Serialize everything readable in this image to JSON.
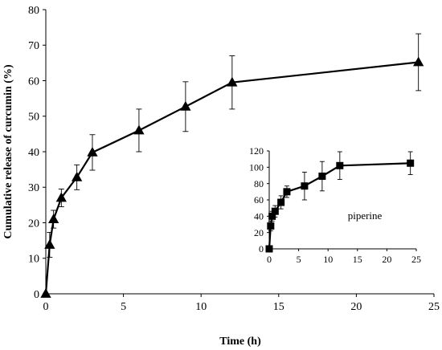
{
  "chart_data": [
    {
      "type": "line",
      "xlabel": "Time (h)",
      "ylabel": "Cumulative release of curcumin (%)",
      "xlim": [
        0,
        25
      ],
      "ylim": [
        0,
        80
      ],
      "xticks": [
        "0",
        "5",
        "10",
        "15",
        "20",
        "25"
      ],
      "yticks": [
        "0",
        "10",
        "20",
        "30",
        "40",
        "50",
        "60",
        "70",
        "80"
      ],
      "marker": "triangle",
      "series": [
        {
          "x": [
            0,
            0.25,
            0.5,
            1,
            2,
            3,
            6,
            9,
            12,
            24
          ],
          "y": [
            0,
            13.8,
            21,
            27,
            32.8,
            39.8,
            46,
            52.7,
            59.5,
            65.2
          ],
          "yerr": [
            0,
            3.5,
            2.5,
            2.5,
            3.5,
            5,
            6,
            7,
            7.5,
            8
          ]
        }
      ]
    },
    {
      "type": "line",
      "xlim": [
        0,
        25
      ],
      "ylim": [
        0,
        120
      ],
      "xticks": [
        "0",
        "5",
        "10",
        "15",
        "20",
        "25"
      ],
      "yticks": [
        "0",
        "20",
        "40",
        "60",
        "80",
        "100",
        "120"
      ],
      "marker": "square",
      "annotation": "piperine",
      "series": [
        {
          "x": [
            0,
            0.25,
            0.5,
            1,
            2,
            3,
            6,
            9,
            12,
            24
          ],
          "y": [
            0,
            28,
            40,
            46,
            57,
            70,
            77,
            89,
            102,
            105
          ],
          "yerr": [
            0,
            6,
            6,
            7,
            8,
            7,
            17,
            18,
            17,
            14
          ]
        }
      ]
    }
  ]
}
